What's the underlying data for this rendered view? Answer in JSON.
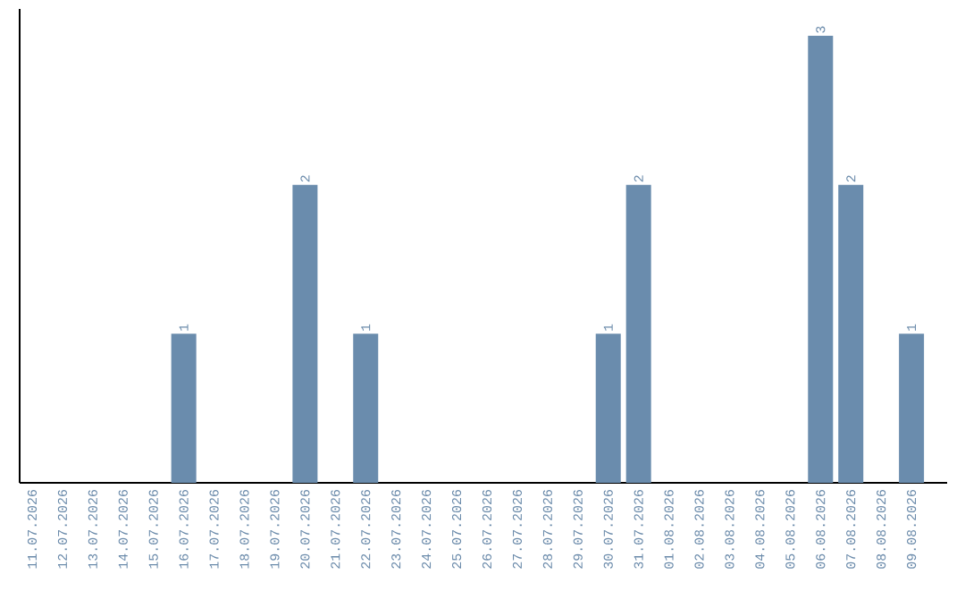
{
  "chart_data": {
    "type": "bar",
    "color": "#6a8cad",
    "categories": [
      "11.07.2026",
      "12.07.2026",
      "13.07.2026",
      "14.07.2026",
      "15.07.2026",
      "16.07.2026",
      "17.07.2026",
      "18.07.2026",
      "19.07.2026",
      "20.07.2026",
      "21.07.2026",
      "22.07.2026",
      "23.07.2026",
      "24.07.2026",
      "25.07.2026",
      "26.07.2026",
      "27.07.2026",
      "28.07.2026",
      "29.07.2026",
      "30.07.2026",
      "31.07.2026",
      "01.08.2026",
      "02.08.2026",
      "03.08.2026",
      "04.08.2026",
      "05.08.2026",
      "06.08.2026",
      "07.08.2026",
      "08.08.2026",
      "09.08.2026"
    ],
    "values": [
      0,
      0,
      0,
      0,
      0,
      1,
      0,
      0,
      0,
      2,
      0,
      1,
      0,
      0,
      0,
      0,
      0,
      0,
      0,
      1,
      2,
      0,
      0,
      0,
      0,
      0,
      3,
      2,
      0,
      1
    ],
    "value_labels": [
      null,
      null,
      null,
      null,
      null,
      "1",
      null,
      null,
      null,
      "2",
      null,
      "1",
      null,
      null,
      null,
      null,
      null,
      null,
      null,
      "1",
      "2",
      null,
      null,
      null,
      null,
      null,
      "3",
      "2",
      null,
      "1"
    ],
    "grid": false
  }
}
